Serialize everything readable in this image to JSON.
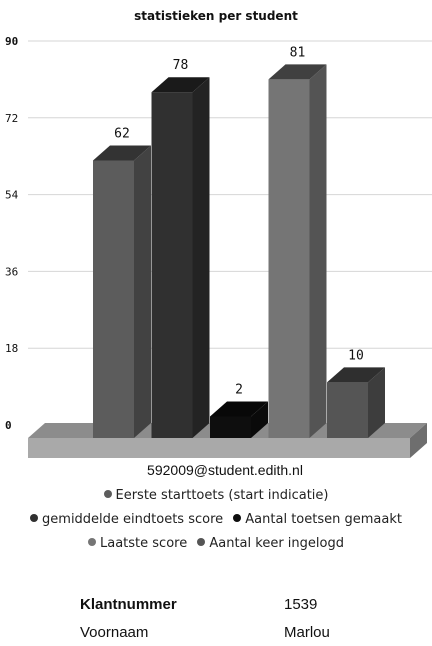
{
  "chart_data": {
    "type": "bar",
    "title": "statistieken per student",
    "xlabel": "592009@student.edith.nl",
    "ylabel": "",
    "ylim": [
      0,
      90
    ],
    "yticks": [
      0,
      18,
      36,
      54,
      72,
      90
    ],
    "grid": true,
    "legend_position": "bottom",
    "series": [
      {
        "name": "Eerste starttoets (start indicatie)",
        "value": 62,
        "color": "#5c5c5c"
      },
      {
        "name": "gemiddelde eindtoets score",
        "value": 78,
        "color": "#303030"
      },
      {
        "name": "Aantal toetsen gemaakt",
        "value": 2,
        "color": "#0e0e0e"
      },
      {
        "name": "Laatste score",
        "value": 81,
        "color": "#757575"
      },
      {
        "name": "Aantal keer ingelogd",
        "value": 10,
        "color": "#555555"
      }
    ]
  },
  "info": {
    "klantnummer_label": "Klantnummer",
    "klantnummer_value": "1539",
    "voornaam_label": "Voornaam",
    "voornaam_value": "Marlou"
  }
}
